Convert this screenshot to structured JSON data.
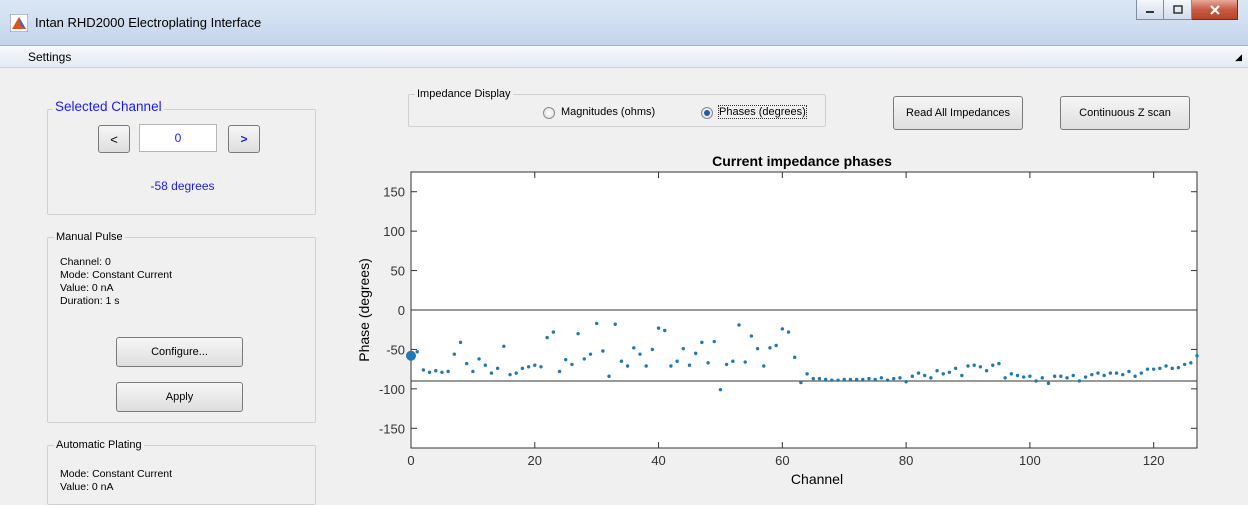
{
  "window": {
    "title": "Intan RHD2000 Electroplating Interface"
  },
  "menu": {
    "settings": "Settings"
  },
  "selected_channel": {
    "title": "Selected Channel",
    "prev_label": "<",
    "value": "0",
    "next_label": ">",
    "readout": "-58 degrees"
  },
  "manual_pulse": {
    "title": "Manual Pulse",
    "lines": [
      "Channel: 0",
      "Mode: Constant Current",
      "Value: 0 nA",
      "Duration: 1 s"
    ],
    "configure_label": "Configure...",
    "apply_label": "Apply"
  },
  "automatic_plating": {
    "title": "Automatic Plating",
    "lines": [
      "Mode: Constant Current",
      "Value: 0 nA"
    ]
  },
  "impedance_display": {
    "title": "Impedance Display",
    "option_magnitudes": "Magnitudes (ohms)",
    "option_phases": "Phases (degrees)",
    "selected": "phases"
  },
  "buttons": {
    "read_all": "Read All Impedances",
    "continuous": "Continuous Z scan"
  },
  "colors": {
    "accent_text": "#1a1aff",
    "data_point": "#1f77b4",
    "close_button": "#c75b43"
  },
  "chart_data": {
    "type": "scatter",
    "title": "Current impedance phases",
    "xlabel": "Channel",
    "ylabel": "Phase (degrees)",
    "xlim": [
      0,
      127
    ],
    "ylim": [
      -175,
      175
    ],
    "xticks": [
      0,
      20,
      40,
      60,
      80,
      100,
      120
    ],
    "yticks": [
      150,
      100,
      50,
      0,
      -50,
      -100,
      -150
    ],
    "reference_lines": [
      0,
      -90
    ],
    "selected_channel": 0,
    "selected_value": -58,
    "x": [
      0,
      1,
      2,
      3,
      4,
      5,
      6,
      7,
      8,
      9,
      10,
      11,
      12,
      13,
      14,
      15,
      16,
      17,
      18,
      19,
      20,
      21,
      22,
      23,
      24,
      25,
      26,
      27,
      28,
      29,
      30,
      31,
      32,
      33,
      34,
      35,
      36,
      37,
      38,
      39,
      40,
      41,
      42,
      43,
      44,
      45,
      46,
      47,
      48,
      49,
      50,
      51,
      52,
      53,
      54,
      55,
      56,
      57,
      58,
      59,
      60,
      61,
      62,
      63,
      64,
      65,
      66,
      67,
      68,
      69,
      70,
      71,
      72,
      73,
      74,
      75,
      76,
      77,
      78,
      79,
      80,
      81,
      82,
      83,
      84,
      85,
      86,
      87,
      88,
      89,
      90,
      91,
      92,
      93,
      94,
      95,
      96,
      97,
      98,
      99,
      100,
      101,
      102,
      103,
      104,
      105,
      106,
      107,
      108,
      109,
      110,
      111,
      112,
      113,
      114,
      115,
      116,
      117,
      118,
      119,
      120,
      121,
      122,
      123,
      124,
      125,
      126,
      127
    ],
    "y": [
      -58,
      -53,
      -76,
      -79,
      -77,
      -79,
      -78,
      -56,
      -41,
      -68,
      -78,
      -62,
      -70,
      -80,
      -74,
      -46,
      -82,
      -80,
      -74,
      -72,
      -70,
      -72,
      -35,
      -28,
      -78,
      -63,
      -69,
      -30,
      -62,
      -56,
      -17,
      -52,
      -84,
      -18,
      -65,
      -71,
      -48,
      -56,
      -71,
      -50,
      -23,
      -26,
      -71,
      -65,
      -49,
      -70,
      -55,
      -41,
      -67,
      -40,
      -101,
      -69,
      -65,
      -19,
      -66,
      -33,
      -49,
      -71,
      -48,
      -45,
      -24,
      -28,
      -60,
      -92,
      -81,
      -87,
      -87,
      -88,
      -89,
      -89,
      -88,
      -88,
      -88,
      -88,
      -87,
      -88,
      -86,
      -89,
      -87,
      -86,
      -91,
      -84,
      -80,
      -83,
      -86,
      -77,
      -81,
      -79,
      -74,
      -83,
      -71,
      -70,
      -72,
      -77,
      -70,
      -68,
      -86,
      -81,
      -83,
      -85,
      -84,
      -90,
      -86,
      -93,
      -84,
      -84,
      -86,
      -83,
      -90,
      -85,
      -82,
      -80,
      -83,
      -80,
      -80,
      -82,
      -78,
      -84,
      -80,
      -75,
      -75,
      -74,
      -71,
      -74,
      -73,
      -69,
      -67,
      -58
    ]
  }
}
